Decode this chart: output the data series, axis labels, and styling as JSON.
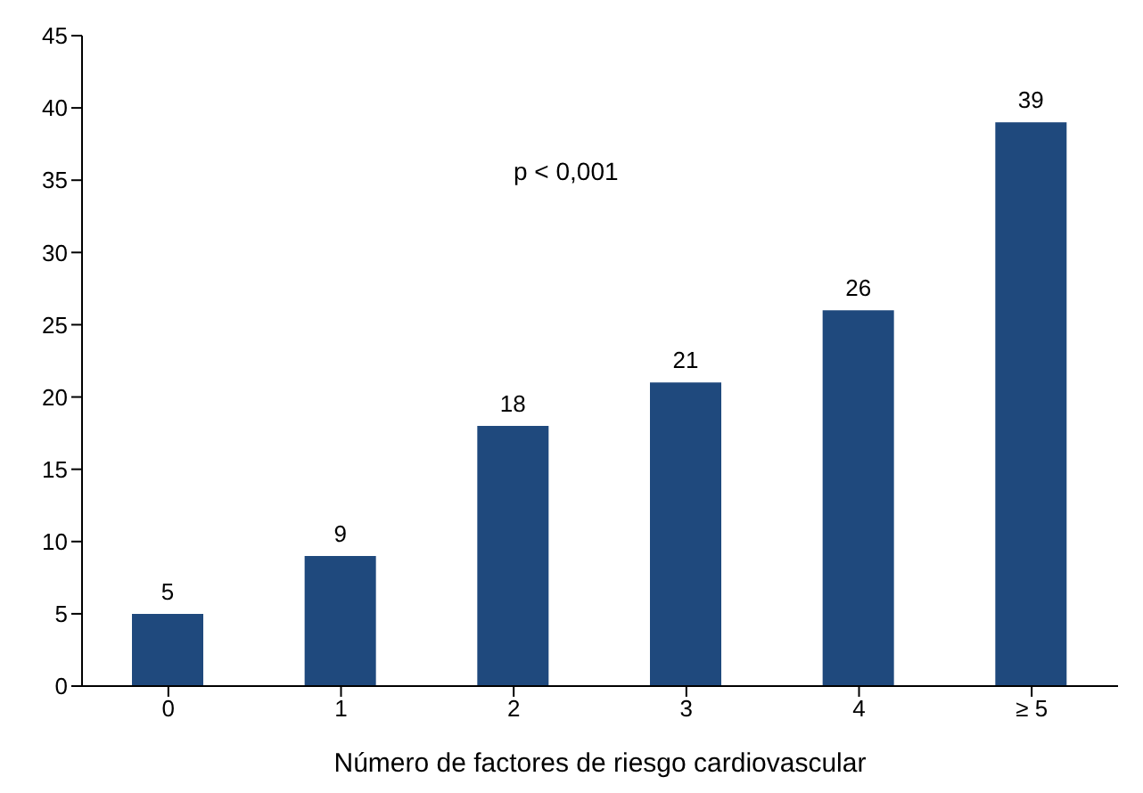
{
  "chart_data": {
    "type": "bar",
    "xlabel": "Número de factores de riesgo cardiovascular",
    "categories": [
      "0",
      "1",
      "2",
      "3",
      "4",
      "≥ 5"
    ],
    "values": [
      5,
      9,
      18,
      21,
      26,
      39
    ],
    "color": "#1f497d",
    "ylim": [
      0,
      45
    ],
    "yticks": [
      0,
      5,
      10,
      15,
      20,
      25,
      30,
      35,
      40,
      45
    ],
    "grid": false,
    "data_labels": true,
    "annotations": [
      "p < 0,001"
    ]
  }
}
